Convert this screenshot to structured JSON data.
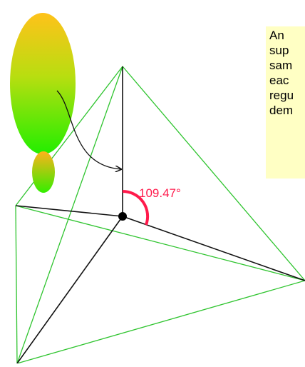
{
  "angle_label": "109.47°",
  "caption": {
    "lines": [
      "An",
      "sup",
      "sam",
      "eac",
      "regu",
      "dem"
    ]
  },
  "colors": {
    "tetrahedron_edges": "#2ec42e",
    "bonds": "#111111",
    "angle_arc": "#ff1a4b",
    "angle_text": "#ff1a4b",
    "caption_background": "#ffffc4",
    "orbital_gradient_top": "#ffc21a",
    "orbital_gradient_bottom": "#22ee00"
  },
  "icons": {
    "orbital": "sp3-orbital-lobes",
    "arrow": "curved-arrow",
    "atom": "central-atom-dot"
  }
}
